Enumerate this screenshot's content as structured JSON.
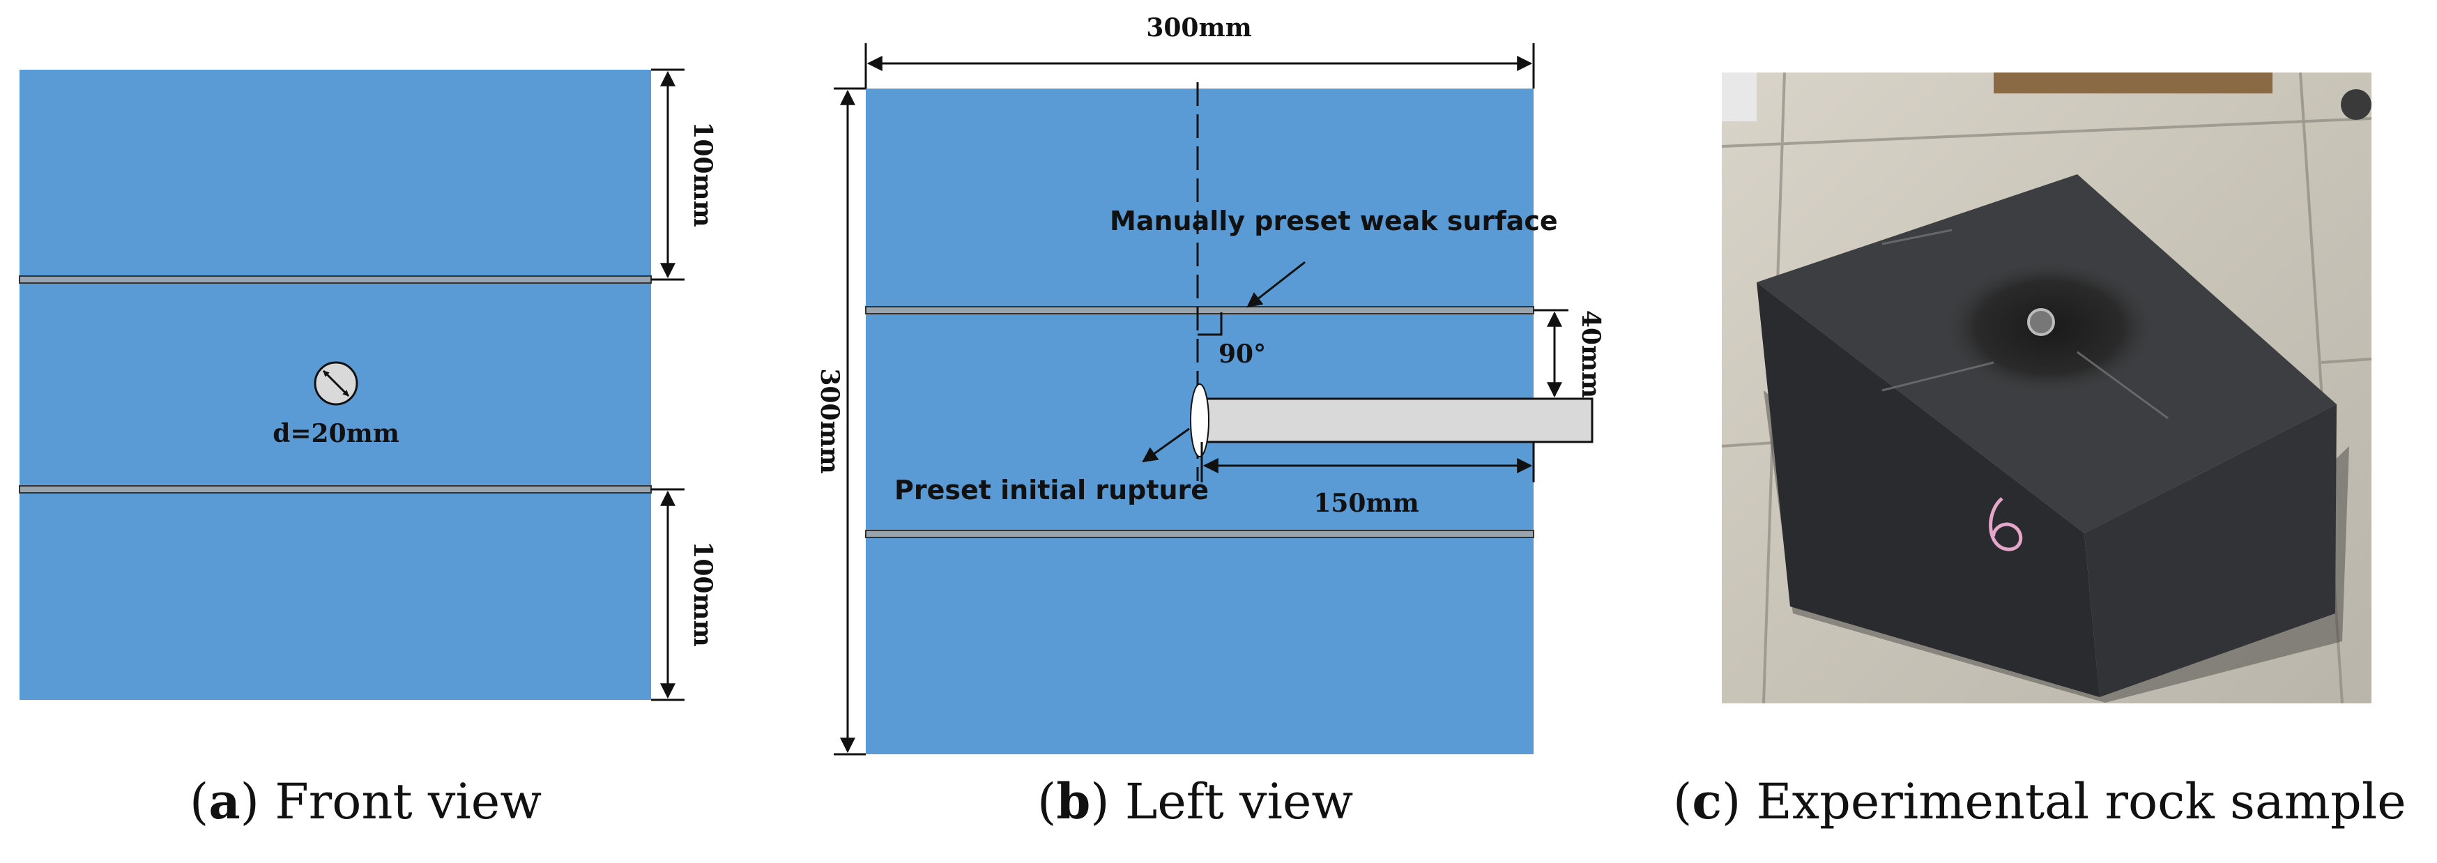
{
  "colors": {
    "specimen_fill": "#5b9bd5",
    "weak_surface_fill": "#9aa4ad",
    "anchor_fill": "#d9d9d9",
    "line": "#111111"
  },
  "panel_a": {
    "dim_top": "100mm",
    "dim_bottom": "100mm",
    "hole_label": "d=20mm",
    "caption_letter": "a",
    "caption_text": " Front view"
  },
  "panel_b": {
    "dim_width": "300mm",
    "dim_height": "300mm",
    "dim_offset": "40mm",
    "dim_anchor": "150mm",
    "angle_label": "90°",
    "weak_surface_label": "Manually preset weak surface",
    "rupture_label": "Preset initial rupture",
    "caption_letter": "b",
    "caption_text": " Left view"
  },
  "panel_c": {
    "photo_icon": "rock-sample-photo",
    "caption_letter": "c",
    "caption_text": " Experimental rock sample"
  }
}
